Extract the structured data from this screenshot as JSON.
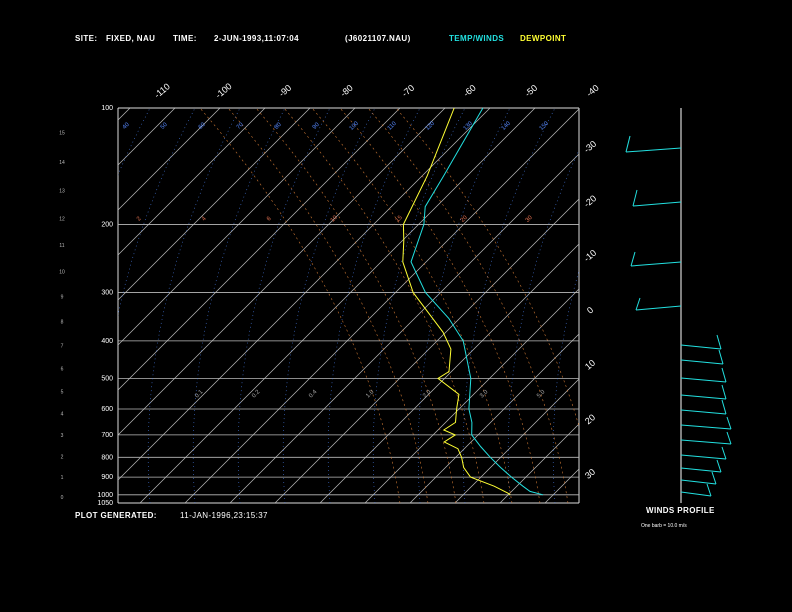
{
  "header": {
    "site_label": "SITE:",
    "site_value": "FIXED, NAU",
    "time_label": "TIME:",
    "time_value": "2-JUN-1993,11:07:04",
    "file": "(J6021107.NAU)",
    "temp_legend": "TEMP/WINDS",
    "dew_legend": "DEWPOINT"
  },
  "footer": {
    "generated_label": "PLOT GENERATED:",
    "generated_value": "11-JAN-1996,23:15:37"
  },
  "winds": {
    "title": "WINDS PROFILE",
    "note": "One barb = 10.0 m/s"
  },
  "colors": {
    "background": "#000000",
    "grid": "#bbbbbb",
    "temperature": "#22e0e0",
    "dewpoint": "#ffff33",
    "theta_labels": "#5588ff",
    "mixing_ratio": "#e07050"
  },
  "chart_data": {
    "type": "line",
    "subtype": "skew-T log-P",
    "pressure_axis": {
      "ticks": [
        "100",
        "200",
        "300",
        "400",
        "500",
        "600",
        "700",
        "800",
        "900",
        "1000",
        "1050"
      ],
      "ylim": [
        1050,
        100
      ],
      "scale": "log"
    },
    "height_axis_km": [
      "0",
      "1",
      "2",
      "3",
      "4",
      "5",
      "6",
      "7",
      "8",
      "9",
      "10",
      "11",
      "12",
      "13",
      "14",
      "15"
    ],
    "top_temperature_ticks": [
      "-110",
      "-100",
      "-90",
      "-80",
      "-70",
      "-60",
      "-50",
      "-40"
    ],
    "right_temperature_ticks": [
      "-30",
      "-20",
      "-10",
      "0",
      "10",
      "20",
      "30"
    ],
    "dry_adiabat_labels": [
      "40",
      "50",
      "60",
      "70",
      "80",
      "90",
      "100",
      "110",
      "120",
      "130",
      "140",
      "150"
    ],
    "mixing_ratio_labels": [
      "2",
      "4",
      "6",
      "10",
      "15",
      "20",
      "30",
      "0.1",
      "0.2",
      "0.4",
      "1.0",
      "2.0",
      "3.0",
      "5.0"
    ],
    "grid": true,
    "series": [
      {
        "name": "TEMP/WINDS",
        "x": [
          34,
          30,
          27,
          22,
          17,
          12,
          7,
          2,
          -1,
          -5,
          -12,
          -23,
          -32,
          -44,
          -55,
          -61,
          -65,
          -68,
          -75
        ],
        "y": [
          1000,
          980,
          950,
          900,
          850,
          800,
          750,
          700,
          650,
          600,
          500,
          400,
          350,
          300,
          250,
          200,
          180,
          150,
          100
        ]
      },
      {
        "name": "DEWPOINT",
        "x": [
          26,
          25,
          20,
          12,
          8,
          5,
          2,
          -3,
          -2,
          -6,
          -5,
          -8,
          -11,
          -20,
          -19,
          -24,
          -30,
          -38,
          -47,
          -57,
          -62,
          -66,
          -72,
          -82
        ],
        "y": [
          1000,
          990,
          950,
          900,
          850,
          800,
          760,
          730,
          700,
          680,
          650,
          600,
          550,
          500,
          480,
          420,
          380,
          340,
          300,
          250,
          220,
          200,
          150,
          100
        ]
      }
    ]
  }
}
